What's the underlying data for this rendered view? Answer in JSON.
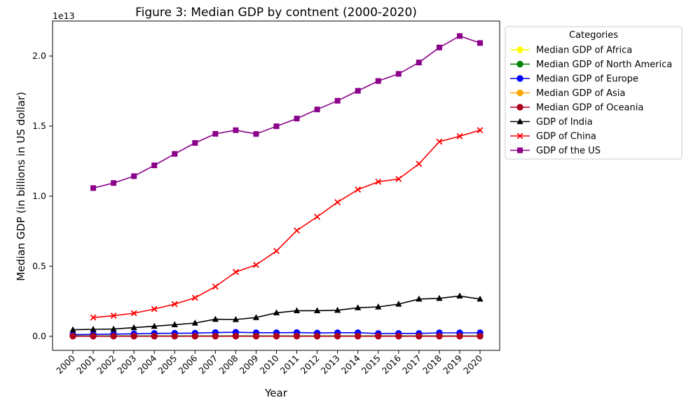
{
  "chart_data": {
    "type": "line",
    "title": "Figure 3: Median GDP by contnent (2000-2020)",
    "xlabel": "Year",
    "ylabel": "Median GDP (in billions in US dollar)",
    "y_multiplier": "1e13",
    "ylim": [
      -0.1,
      2.25
    ],
    "y_ticks": [
      "0.0",
      "0.5",
      "1.0",
      "1.5",
      "2.0"
    ],
    "y_tick_values": [
      0,
      0.5,
      1.0,
      1.5,
      2.0
    ],
    "x": [
      "2000",
      "2001",
      "2002",
      "2003",
      "2004",
      "2005",
      "2006",
      "2007",
      "2008",
      "2009",
      "2010",
      "2011",
      "2012",
      "2013",
      "2014",
      "2015",
      "2016",
      "2017",
      "2018",
      "2019",
      "2020"
    ],
    "legend": {
      "title": "Categories",
      "position": "outside-right"
    },
    "grid": false,
    "series": [
      {
        "name": "Median GDP of Africa",
        "color": "#ffff00",
        "marker": "circle",
        "values": [
          0.003,
          0.003,
          0.003,
          0.003,
          0.003,
          0.003,
          0.003,
          0.003,
          0.003,
          0.003,
          0.003,
          0.003,
          0.003,
          0.003,
          0.003,
          0.003,
          0.003,
          0.003,
          0.003,
          0.003,
          0.003
        ]
      },
      {
        "name": "Median GDP of North America",
        "color": "#008000",
        "marker": "circle",
        "values": [
          0.003,
          0.003,
          0.003,
          0.003,
          0.003,
          0.003,
          0.003,
          0.003,
          0.003,
          0.003,
          0.003,
          0.003,
          0.003,
          0.003,
          0.003,
          0.003,
          0.003,
          0.003,
          0.003,
          0.003,
          0.003
        ]
      },
      {
        "name": "Median GDP of Europe",
        "color": "#0000ff",
        "marker": "circle",
        "values": [
          0.012,
          0.014,
          0.016,
          0.018,
          0.021,
          0.022,
          0.023,
          0.027,
          0.029,
          0.026,
          0.026,
          0.027,
          0.024,
          0.026,
          0.026,
          0.02,
          0.021,
          0.021,
          0.025,
          0.025,
          0.025
        ]
      },
      {
        "name": "Median GDP of Asia",
        "color": "#ffa500",
        "marker": "circle",
        "values": [
          0.001,
          0.001,
          0.001,
          0.001,
          0.001,
          0.001,
          0.001,
          0.001,
          0.001,
          0.001,
          0.001,
          0.001,
          0.001,
          0.001,
          0.001,
          0.001,
          0.001,
          0.001,
          0.001,
          0.001,
          0.001
        ]
      },
      {
        "name": "Median GDP of Oceania",
        "color": "#b00020",
        "marker": "circle",
        "values": [
          0.001,
          0.001,
          0.001,
          0.001,
          0.001,
          0.001,
          0.001,
          0.001,
          0.001,
          0.001,
          0.001,
          0.001,
          0.001,
          0.001,
          0.001,
          0.001,
          0.001,
          0.001,
          0.001,
          0.001,
          0.001
        ]
      },
      {
        "name": "GDP of India",
        "color": "#000000",
        "marker": "triangle",
        "values": [
          0.047,
          0.05,
          0.052,
          0.062,
          0.072,
          0.083,
          0.095,
          0.122,
          0.12,
          0.134,
          0.168,
          0.183,
          0.183,
          0.186,
          0.204,
          0.21,
          0.23,
          0.266,
          0.271,
          0.288,
          0.266
        ]
      },
      {
        "name": "GDP of China",
        "color": "#ff0000",
        "marker": "x",
        "values": [
          null,
          0.134,
          0.147,
          0.165,
          0.195,
          0.23,
          0.275,
          0.355,
          0.459,
          0.51,
          0.609,
          0.755,
          0.853,
          0.957,
          1.047,
          1.103,
          1.123,
          1.231,
          1.389,
          1.428,
          1.471
        ]
      },
      {
        "name": "GDP of the US",
        "color": "#8b008b",
        "marker": "square",
        "values": [
          null,
          1.058,
          1.094,
          1.143,
          1.22,
          1.302,
          1.38,
          1.445,
          1.471,
          1.444,
          1.499,
          1.554,
          1.619,
          1.681,
          1.752,
          1.822,
          1.873,
          1.954,
          2.061,
          2.143,
          2.093
        ]
      }
    ]
  }
}
